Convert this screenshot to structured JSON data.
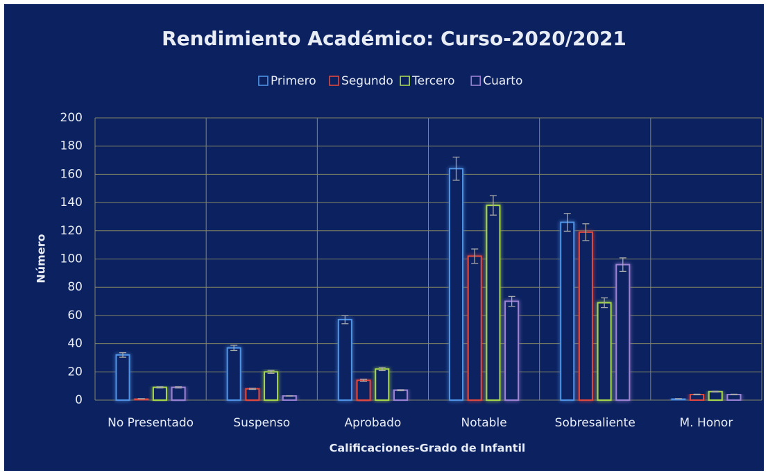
{
  "chart_data": {
    "type": "bar",
    "title": "Rendimiento Académico: Curso-2020/2021",
    "x_label": "Calificaciones-Grado de Infantil",
    "y_label": "Número",
    "categories": [
      "No Presentado",
      "Suspenso",
      "Aprobado",
      "Notable",
      "Sobresaliente",
      "M. Honor"
    ],
    "series": [
      {
        "name": "Primero",
        "color": "#4f93e6",
        "values": [
          32,
          37,
          57,
          164,
          126,
          1
        ],
        "errors": [
          1.6,
          1.85,
          2.85,
          8.2,
          6.3,
          0.05
        ]
      },
      {
        "name": "Segundo",
        "color": "#e2483d",
        "values": [
          1,
          8,
          14,
          102,
          119,
          4
        ],
        "errors": [
          0.05,
          0.4,
          0.7,
          5.1,
          5.95,
          0.2
        ]
      },
      {
        "name": "Tercero",
        "color": "#a8d64c",
        "values": [
          9,
          20,
          22,
          138,
          69,
          6
        ],
        "errors": [
          0.45,
          1,
          1.1,
          6.9,
          3.45,
          0.3
        ]
      },
      {
        "name": "Cuarto",
        "color": "#9c82d4",
        "values": [
          9,
          3,
          7,
          70,
          96,
          4
        ],
        "errors": [
          0.45,
          0.15,
          0.35,
          3.5,
          4.8,
          0.2
        ]
      }
    ],
    "ylim": [
      0,
      200
    ],
    "yticks": [
      0,
      20,
      40,
      60,
      80,
      100,
      120,
      140,
      160,
      180,
      200
    ],
    "grid": true,
    "legend": "top"
  }
}
